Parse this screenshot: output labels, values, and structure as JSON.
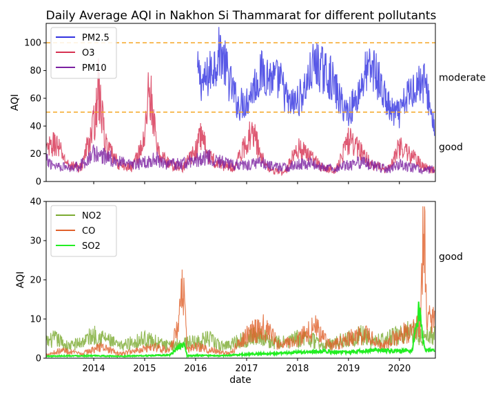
{
  "chart_data": [
    {
      "type": "line",
      "title": "Daily Average AQI in Nakhon Si Thammarat for different pollutants",
      "xlabel": "",
      "ylabel": "AQI",
      "xlim": [
        "2013-01-25",
        "2020-09-15"
      ],
      "ylim": [
        0,
        114
      ],
      "yticks": [
        0,
        20,
        40,
        60,
        80,
        100
      ],
      "xticks": [
        "2014",
        "2015",
        "2016",
        "2017",
        "2018",
        "2019",
        "2020"
      ],
      "grid": false,
      "legend": "top-left",
      "reference_lines": [
        {
          "y": 100,
          "color": "#f5a623"
        },
        {
          "y": 50,
          "color": "#f5a623"
        }
      ],
      "right_labels": [
        {
          "text": "moderate",
          "y": 75
        },
        {
          "text": "good",
          "y": 25
        }
      ],
      "series": [
        {
          "name": "PM2.5",
          "color": "#3030e0",
          "x": [
            "2016-01-15",
            "2016-03-01",
            "2016-05-01",
            "2016-07-01",
            "2016-09-01",
            "2016-11-01",
            "2017-01-01",
            "2017-03-01",
            "2017-05-01",
            "2017-07-01",
            "2017-09-01",
            "2017-11-01",
            "2018-01-01",
            "2018-03-01",
            "2018-05-01",
            "2018-07-01",
            "2018-09-01",
            "2018-11-01",
            "2019-01-01",
            "2019-03-01",
            "2019-05-01",
            "2019-07-01",
            "2019-09-01",
            "2019-11-01",
            "2020-01-01",
            "2020-03-01",
            "2020-05-01",
            "2020-07-01",
            "2020-09-10"
          ],
          "y": [
            78,
            70,
            82,
            95,
            72,
            55,
            58,
            70,
            80,
            74,
            72,
            55,
            58,
            68,
            85,
            80,
            74,
            58,
            50,
            60,
            78,
            82,
            65,
            50,
            48,
            62,
            70,
            72,
            38
          ]
        },
        {
          "name": "O3",
          "color": "#d63050",
          "x": [
            "2013-01-25",
            "2013-04-01",
            "2013-07-01",
            "2013-10-01",
            "2014-01-01",
            "2014-02-01",
            "2014-04-01",
            "2014-07-01",
            "2014-10-01",
            "2015-01-01",
            "2015-02-01",
            "2015-04-01",
            "2015-07-01",
            "2015-10-01",
            "2016-01-01",
            "2016-02-15",
            "2016-04-01",
            "2016-07-01",
            "2016-10-01",
            "2017-01-01",
            "2017-02-15",
            "2017-04-01",
            "2017-07-01",
            "2017-10-01",
            "2018-01-01",
            "2018-04-01",
            "2018-07-01",
            "2018-10-01",
            "2019-01-01",
            "2019-04-01",
            "2019-07-01",
            "2019-10-01",
            "2020-01-01",
            "2020-04-01",
            "2020-07-01",
            "2020-09-10"
          ],
          "y": [
            22,
            28,
            12,
            10,
            40,
            68,
            25,
            12,
            10,
            30,
            72,
            22,
            12,
            10,
            22,
            35,
            18,
            12,
            10,
            28,
            40,
            20,
            8,
            6,
            25,
            18,
            10,
            8,
            30,
            22,
            12,
            8,
            25,
            18,
            10,
            8
          ]
        },
        {
          "name": "PM10",
          "color": "#7a1fa0",
          "x": [
            "2013-01-25",
            "2013-04-01",
            "2013-07-01",
            "2013-10-01",
            "2014-01-01",
            "2014-04-01",
            "2014-07-01",
            "2014-10-01",
            "2015-01-01",
            "2015-04-01",
            "2015-07-01",
            "2015-10-01",
            "2016-01-01",
            "2016-04-01",
            "2016-07-01",
            "2016-10-01",
            "2017-01-01",
            "2017-04-01",
            "2017-07-01",
            "2017-10-01",
            "2018-01-01",
            "2018-04-01",
            "2018-07-01",
            "2018-10-01",
            "2019-01-01",
            "2019-04-01",
            "2019-07-01",
            "2019-10-01",
            "2020-01-01",
            "2020-04-01",
            "2020-07-01",
            "2020-09-10"
          ],
          "y": [
            15,
            12,
            10,
            12,
            20,
            18,
            14,
            11,
            14,
            16,
            12,
            13,
            15,
            18,
            14,
            12,
            12,
            14,
            11,
            10,
            12,
            13,
            10,
            9,
            12,
            14,
            11,
            9,
            12,
            10,
            8,
            9
          ]
        }
      ]
    },
    {
      "type": "line",
      "title": "",
      "xlabel": "date",
      "ylabel": "AQI",
      "xlim": [
        "2013-01-25",
        "2020-09-15"
      ],
      "ylim": [
        0,
        40
      ],
      "yticks": [
        0,
        10,
        20,
        30,
        40
      ],
      "xticks": [
        "2014",
        "2015",
        "2016",
        "2017",
        "2018",
        "2019",
        "2020"
      ],
      "grid": false,
      "legend": "top-left",
      "right_labels": [
        {
          "text": "good",
          "y": 26
        }
      ],
      "series": [
        {
          "name": "NO2",
          "color": "#7aaa30",
          "x": [
            "2013-01-25",
            "2013-04-01",
            "2013-07-01",
            "2013-10-01",
            "2014-01-01",
            "2014-04-01",
            "2014-07-01",
            "2014-10-01",
            "2015-01-01",
            "2015-04-01",
            "2015-07-01",
            "2015-10-01",
            "2016-01-01",
            "2016-04-01",
            "2016-07-01",
            "2016-10-01",
            "2017-01-01",
            "2017-04-01",
            "2017-07-01",
            "2017-10-01",
            "2018-01-01",
            "2018-04-01",
            "2018-07-01",
            "2018-10-01",
            "2019-01-01",
            "2019-04-01",
            "2019-07-01",
            "2019-10-01",
            "2020-01-01",
            "2020-04-01",
            "2020-07-01",
            "2020-09-10"
          ],
          "y": [
            4,
            5,
            3,
            4,
            6,
            5,
            3,
            4,
            5,
            4,
            3,
            4,
            4,
            5,
            3,
            4,
            5,
            6,
            4,
            4,
            5,
            5,
            3,
            4,
            5,
            6,
            4,
            5,
            6,
            7,
            5,
            6
          ]
        },
        {
          "name": "CO",
          "color": "#e0602a",
          "x": [
            "2013-01-25",
            "2013-06-01",
            "2013-10-01",
            "2014-03-01",
            "2014-07-01",
            "2014-11-01",
            "2015-03-01",
            "2015-07-01",
            "2015-09-01",
            "2015-10-10",
            "2015-11-01",
            "2016-01-01",
            "2016-05-01",
            "2016-09-01",
            "2017-01-01",
            "2017-05-01",
            "2017-09-01",
            "2018-01-01",
            "2018-05-01",
            "2018-09-01",
            "2019-01-01",
            "2019-05-01",
            "2019-09-01",
            "2020-01-01",
            "2020-04-01",
            "2020-06-01",
            "2020-06-25",
            "2020-07-15",
            "2020-09-10"
          ],
          "y": [
            1,
            2,
            1,
            3,
            1,
            2,
            3,
            2,
            8,
            20,
            2,
            3,
            2,
            1,
            6,
            8,
            3,
            5,
            8,
            3,
            5,
            6,
            3,
            6,
            7,
            8,
            38,
            10,
            12
          ]
        },
        {
          "name": "SO2",
          "color": "#22ee22",
          "x": [
            "2013-01-25",
            "2013-07-01",
            "2014-01-01",
            "2014-07-01",
            "2015-01-01",
            "2015-07-01",
            "2015-10-15",
            "2015-11-01",
            "2016-01-01",
            "2016-07-01",
            "2017-01-01",
            "2017-07-01",
            "2018-01-01",
            "2018-07-01",
            "2019-01-01",
            "2019-07-01",
            "2020-01-01",
            "2020-04-01",
            "2020-05-20",
            "2020-07-01",
            "2020-09-10"
          ],
          "y": [
            0.5,
            0.6,
            0.6,
            0.5,
            0.6,
            0.8,
            4,
            0.6,
            0.7,
            0.6,
            1,
            1.2,
            1.5,
            1.8,
            1.5,
            2,
            1.8,
            2,
            12,
            2,
            2
          ]
        }
      ]
    }
  ]
}
